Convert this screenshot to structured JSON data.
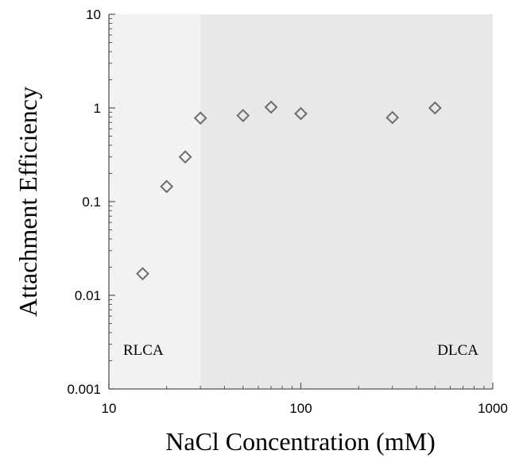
{
  "chart_data": {
    "type": "scatter",
    "title": "",
    "xlabel": "NaCl Concentration (mM)",
    "ylabel": "Attachment Efficiency",
    "xscale": "log",
    "yscale": "log",
    "xlim": [
      10,
      1000
    ],
    "ylim": [
      0.001,
      10
    ],
    "x_ticks": [
      10,
      100,
      1000
    ],
    "x_tick_labels": [
      "10",
      "100",
      "1000"
    ],
    "y_ticks": [
      0.001,
      0.01,
      0.1,
      1,
      10
    ],
    "y_tick_labels": [
      "0.001",
      "0.01",
      "0.1",
      "1",
      "10"
    ],
    "grid": false,
    "marker": "diamond",
    "colors": {
      "marker_stroke": "#6e6e6e",
      "rlca_region": "#f2f2f2",
      "dlca_region": "#e8e8e8",
      "axis": "#555555"
    },
    "regions": [
      {
        "label": "RLCA",
        "x_from": 10,
        "x_to": 30
      },
      {
        "label": "DLCA",
        "x_from": 30,
        "x_to": 1000
      }
    ],
    "points": [
      {
        "x": 15,
        "y": 0.017
      },
      {
        "x": 20,
        "y": 0.145
      },
      {
        "x": 25,
        "y": 0.3
      },
      {
        "x": 30,
        "y": 0.78
      },
      {
        "x": 50,
        "y": 0.83
      },
      {
        "x": 70,
        "y": 1.02
      },
      {
        "x": 100,
        "y": 0.87
      },
      {
        "x": 300,
        "y": 0.79
      },
      {
        "x": 500,
        "y": 1.0
      }
    ]
  }
}
